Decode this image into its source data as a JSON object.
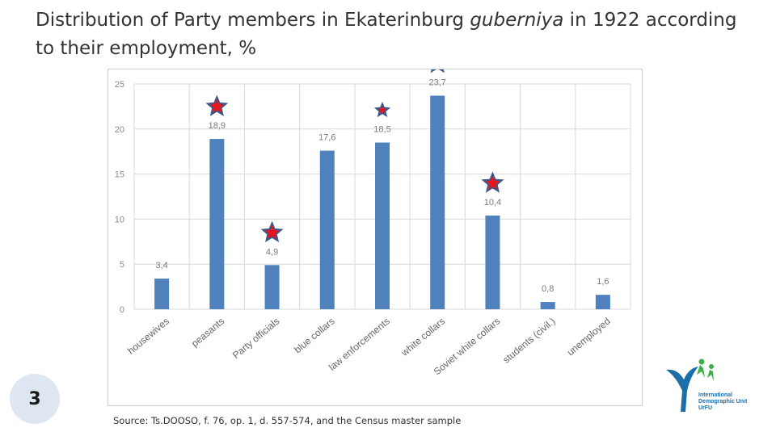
{
  "title": {
    "part1": "Distribution of Party members in Ekaterinburg ",
    "italic": "guberniya",
    "part2": " in 1922 according to their employment, %"
  },
  "source": "Source: Ts.DOOSO, f. 76, op. 1, d. 557-574, and the Census master sample",
  "page_number": "3",
  "logo": {
    "line1": "International",
    "line2": "Demographic Unit",
    "line3": "UrFU"
  },
  "colors": {
    "bar": "#4f81bd",
    "star_fill": "#e8141e",
    "star_stroke": "#3b5a8a",
    "grid": "#d9d9d9"
  },
  "chart_data": {
    "type": "bar",
    "categories": [
      "housewives",
      "peasants",
      "Party officials",
      "blue collars",
      "law enforcements",
      "white collars",
      "Soviet white collars",
      "students (civil.)",
      "unemployed"
    ],
    "values": [
      3.4,
      18.9,
      4.9,
      17.6,
      18.5,
      23.7,
      10.4,
      0.8,
      1.6
    ],
    "value_labels": [
      "3,4",
      "18,9",
      "4,9",
      "17,6",
      "18,5",
      "23,7",
      "10,4",
      "0,8",
      "1,6"
    ],
    "starred": [
      false,
      true,
      true,
      false,
      true,
      true,
      true,
      false,
      false
    ],
    "yticks": [
      0,
      5,
      10,
      15,
      20,
      25
    ],
    "ytick_labels": [
      "0",
      "5",
      "10",
      "15",
      "20",
      "25"
    ],
    "ylim": [
      0,
      25
    ],
    "grid": true,
    "legend": "none"
  }
}
